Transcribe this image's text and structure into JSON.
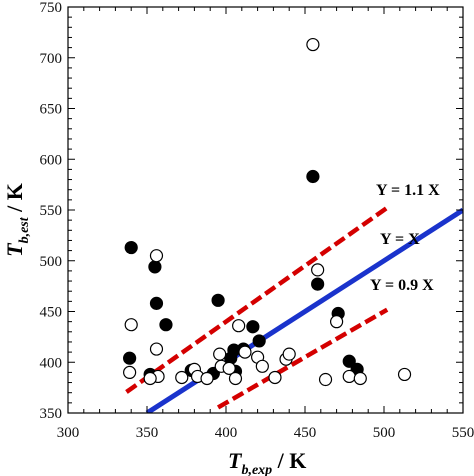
{
  "chart_data": {
    "type": "scatter",
    "xlim": [
      300,
      550
    ],
    "ylim": [
      350,
      750
    ],
    "x_ticks": [
      300,
      350,
      400,
      450,
      500,
      550
    ],
    "y_ticks": [
      350,
      400,
      450,
      500,
      550,
      600,
      650,
      700,
      750
    ],
    "xlabel": {
      "main": "T",
      "sub": "b,exp",
      "unit": " / K"
    },
    "ylabel": {
      "main": "T",
      "sub": "b,est",
      "unit": " / K"
    },
    "lines": [
      {
        "label": "Y = 1.1 X",
        "slope": 1.1,
        "x_range": [
          337,
          502
        ],
        "color": "#d40000",
        "style": "dashed"
      },
      {
        "label": "Y =      X",
        "slope": 1.0,
        "x_range": [
          350,
          550
        ],
        "color": "#1a33cc",
        "style": "solid"
      },
      {
        "label": "Y = 0.9 X",
        "slope": 0.9,
        "x_range": [
          395,
          502
        ],
        "color": "#d40000",
        "style": "dashed"
      }
    ],
    "series": [
      {
        "marker": "filled-circle",
        "points": [
          [
            339,
            404
          ],
          [
            340,
            513
          ],
          [
            355,
            494
          ],
          [
            356,
            458
          ],
          [
            362,
            437
          ],
          [
            352,
            388
          ],
          [
            378,
            392
          ],
          [
            392,
            389
          ],
          [
            395,
            461
          ],
          [
            403,
            404
          ],
          [
            405,
            412
          ],
          [
            411,
            413
          ],
          [
            417,
            435
          ],
          [
            421,
            421
          ],
          [
            406,
            391
          ],
          [
            455,
            583
          ],
          [
            458,
            477
          ],
          [
            471,
            448
          ],
          [
            478,
            401
          ],
          [
            483,
            393
          ]
        ]
      },
      {
        "marker": "open-circle",
        "points": [
          [
            340,
            437
          ],
          [
            339,
            390
          ],
          [
            356,
            505
          ],
          [
            356,
            413
          ],
          [
            357,
            386
          ],
          [
            352,
            384
          ],
          [
            372,
            385
          ],
          [
            380,
            393
          ],
          [
            382,
            386
          ],
          [
            388,
            384
          ],
          [
            396,
            408
          ],
          [
            397,
            396
          ],
          [
            402,
            394
          ],
          [
            406,
            384
          ],
          [
            408,
            436
          ],
          [
            412,
            410
          ],
          [
            420,
            405
          ],
          [
            423,
            396
          ],
          [
            431,
            385
          ],
          [
            438,
            403
          ],
          [
            440,
            408
          ],
          [
            455,
            713
          ],
          [
            458,
            491
          ],
          [
            463,
            383
          ],
          [
            470,
            440
          ],
          [
            478,
            386
          ],
          [
            485,
            384
          ],
          [
            513,
            388
          ]
        ]
      }
    ]
  }
}
